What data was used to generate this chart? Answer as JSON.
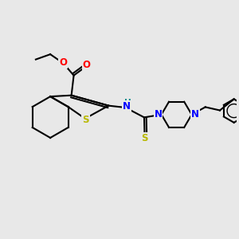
{
  "background_color": "#e8e8e8",
  "atom_colors": {
    "C": "#000000",
    "N": "#0000ff",
    "O": "#ff0000",
    "S": "#b8b800",
    "H": "#008888"
  },
  "bond_color": "#000000",
  "bond_lw": 1.5,
  "font_size_atoms": 8.5,
  "fig_bg": "#e8e8e8"
}
